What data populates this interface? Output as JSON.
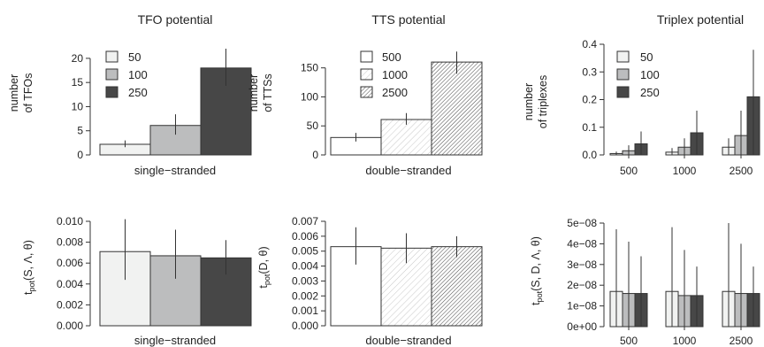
{
  "colors": {
    "light": "#f1f2f1",
    "mid": "#bcbdbe",
    "dark": "#474747",
    "ink": "#333333"
  },
  "chart_data": [
    {
      "type": "bar",
      "id": "tfo-count",
      "title": "TFO potential",
      "ylabel": [
        "number",
        "of TFOs"
      ],
      "xlabel": "single−stranded",
      "ylim": [
        0,
        22
      ],
      "yticks": [
        "0",
        "5",
        "10",
        "15",
        "20"
      ],
      "ytick_values": [
        0,
        5,
        10,
        15,
        20
      ],
      "fills": [
        "light",
        "mid",
        "dark"
      ],
      "series": [
        {
          "name": "50",
          "value": 2.2,
          "err": [
            1.6,
            3.0
          ]
        },
        {
          "name": "100",
          "value": 6.1,
          "err": [
            4.2,
            8.4
          ]
        },
        {
          "name": "250",
          "value": 18.0,
          "err": [
            14.3,
            22.0
          ]
        }
      ]
    },
    {
      "type": "bar",
      "id": "tts-count",
      "title": "TTS potential",
      "ylabel": [
        "number",
        "of TTSs"
      ],
      "xlabel": "double−stranded",
      "ylim": [
        0,
        180
      ],
      "yticks": [
        "0",
        "50",
        "100",
        "150"
      ],
      "ytick_values": [
        0,
        50,
        100,
        150
      ],
      "fills": [
        "white",
        "hatch-light",
        "hatch-dense"
      ],
      "series": [
        {
          "name": "500",
          "value": 30,
          "err": [
            23,
            38
          ]
        },
        {
          "name": "1000",
          "value": 61,
          "err": [
            52,
            72
          ]
        },
        {
          "name": "2500",
          "value": 160,
          "err": [
            140,
            178
          ]
        }
      ]
    },
    {
      "type": "bar",
      "id": "triplex-count",
      "title": "Triplex potential",
      "ylabel": [
        "number",
        "of triplexes"
      ],
      "categories": [
        "500",
        "1000",
        "2500"
      ],
      "ylim": [
        0,
        0.4
      ],
      "yticks": [
        "0.0",
        "0.1",
        "0.2",
        "0.3",
        "0.4"
      ],
      "ytick_values": [
        0,
        0.1,
        0.2,
        0.3,
        0.4
      ],
      "fills": [
        "light",
        "mid",
        "dark"
      ],
      "series": [
        {
          "name": "50",
          "values": [
            0.005,
            0.01,
            0.028
          ],
          "err": [
            [
              0.0,
              0.012
            ],
            [
              0.0,
              0.025
            ],
            [
              0.0,
              0.06
            ]
          ]
        },
        {
          "name": "100",
          "values": [
            0.015,
            0.028,
            0.07
          ],
          "err": [
            [
              0.0,
              0.035
            ],
            [
              0.0,
              0.06
            ],
            [
              0.0,
              0.16
            ]
          ]
        },
        {
          "name": "250",
          "values": [
            0.04,
            0.08,
            0.21
          ],
          "err": [
            [
              0.0,
              0.085
            ],
            [
              0.0,
              0.16
            ],
            [
              0.0,
              0.38
            ]
          ]
        }
      ]
    },
    {
      "type": "bar",
      "id": "tpot-s",
      "ylabel": "t_pot(S, Λ, θ)",
      "xlabel": "single−stranded",
      "ylim": [
        0,
        0.01
      ],
      "yticks": [
        "0.000",
        "0.002",
        "0.004",
        "0.006",
        "0.008",
        "0.010"
      ],
      "ytick_values": [
        0,
        0.002,
        0.004,
        0.006,
        0.008,
        0.01
      ],
      "fills": [
        "light",
        "mid",
        "dark"
      ],
      "series": [
        {
          "name": "50",
          "value": 0.0071,
          "err": [
            0.0044,
            0.0102
          ]
        },
        {
          "name": "100",
          "value": 0.0067,
          "err": [
            0.0045,
            0.0092
          ]
        },
        {
          "name": "250",
          "value": 0.0065,
          "err": [
            0.0049,
            0.0082
          ]
        }
      ]
    },
    {
      "type": "bar",
      "id": "tpot-d",
      "ylabel": "t_pot(D, θ)",
      "xlabel": "double−stranded",
      "ylim": [
        0,
        0.007
      ],
      "yticks": [
        "0.000",
        "0.001",
        "0.002",
        "0.003",
        "0.004",
        "0.005",
        "0.006",
        "0.007"
      ],
      "ytick_values": [
        0,
        0.001,
        0.002,
        0.003,
        0.004,
        0.005,
        0.006,
        0.007
      ],
      "fills": [
        "white",
        "hatch-light",
        "hatch-dense"
      ],
      "series": [
        {
          "name": "500",
          "value": 0.0053,
          "err": [
            0.0041,
            0.0066
          ]
        },
        {
          "name": "1000",
          "value": 0.0052,
          "err": [
            0.0042,
            0.0062
          ]
        },
        {
          "name": "2500",
          "value": 0.0053,
          "err": [
            0.0046,
            0.006
          ]
        }
      ]
    },
    {
      "type": "bar",
      "id": "tpot-sdl",
      "ylabel": "t_pot(S, D, Λ, θ)",
      "categories": [
        "500",
        "1000",
        "2500"
      ],
      "ylim": [
        0,
        5e-08
      ],
      "yticks": [
        "0e+00",
        "1e−08",
        "2e−08",
        "3e−08",
        "4e−08",
        "5e−08"
      ],
      "ytick_values": [
        0,
        1e-08,
        2e-08,
        3e-08,
        4e-08,
        5e-08
      ],
      "fills": [
        "light",
        "mid",
        "dark"
      ],
      "series": [
        {
          "name": "50",
          "values": [
            1.7e-08,
            1.7e-08,
            1.7e-08
          ],
          "err": [
            [
              0.0,
              4.7e-08
            ],
            [
              0.0,
              4.8e-08
            ],
            [
              0.0,
              5e-08
            ]
          ]
        },
        {
          "name": "100",
          "values": [
            1.6e-08,
            1.5e-08,
            1.6e-08
          ],
          "err": [
            [
              0.0,
              4.1e-08
            ],
            [
              0.0,
              3.7e-08
            ],
            [
              0.0,
              4e-08
            ]
          ]
        },
        {
          "name": "250",
          "values": [
            1.6e-08,
            1.5e-08,
            1.6e-08
          ],
          "err": [
            [
              0.0,
              3.4e-08
            ],
            [
              0.0,
              2.9e-08
            ],
            [
              0.0,
              2.9e-08
            ]
          ]
        }
      ]
    }
  ]
}
